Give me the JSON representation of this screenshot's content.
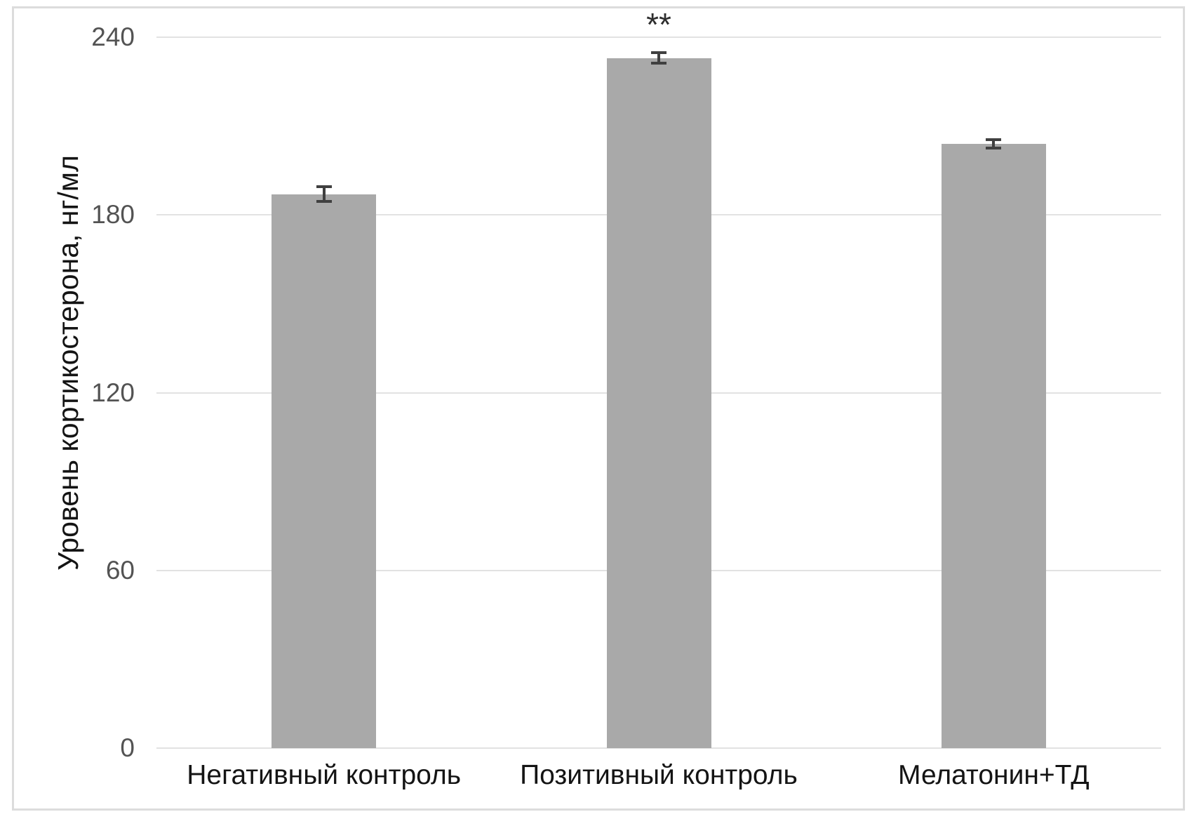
{
  "chart_data": {
    "type": "bar",
    "title": "",
    "xlabel": "",
    "ylabel": "Уровень кортикостерона, нг/мл",
    "categories": [
      "Негативный контроль",
      "Позитивный контроль",
      "Мелатонин+ТД"
    ],
    "values": [
      187,
      233,
      204
    ],
    "error_bars": [
      3,
      2.3,
      1.8
    ],
    "annotations": [
      "",
      "**",
      ""
    ],
    "ylim": [
      0,
      240
    ],
    "yticks": [
      0,
      60,
      120,
      180,
      240
    ],
    "grid": "horizontal-major",
    "legend_position": "none",
    "colors": {
      "bar_fill": "#a9a9a9",
      "error_bar": "#404040",
      "gridline": "#e2e2e2",
      "frame_border": "#dcdcdc",
      "ytick_text": "#535353",
      "xtick_text": "#141414",
      "axis_title_text": "#141414",
      "annotation_text": "#2e2e2e",
      "background": "#ffffff"
    }
  }
}
